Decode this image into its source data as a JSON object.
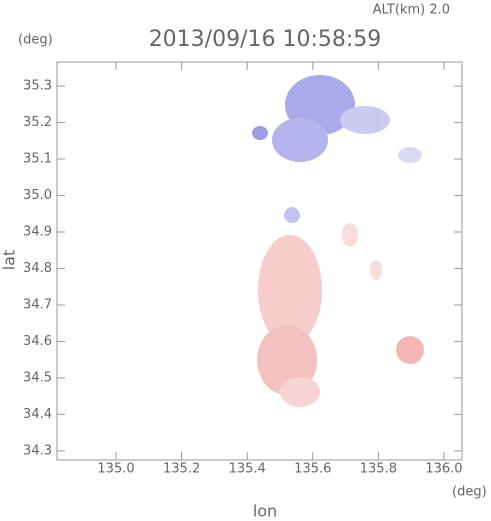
{
  "chart_data": {
    "type": "map",
    "title": "2013/09/16 10:58:59",
    "subtitle": "ALT(km) 2.0",
    "y_unit": "(deg)",
    "x_unit": "(deg)",
    "xlabel": "lon",
    "ylabel": "lat",
    "xlim": [
      134.82,
      136.055
    ],
    "ylim": [
      34.275,
      35.366
    ],
    "xticks": [
      {
        "value": 135,
        "label": "135.0"
      },
      135.2,
      135.4,
      135.6,
      135.8,
      {
        "value": 136,
        "label": "136.0"
      }
    ],
    "yticks": [
      34.3,
      34.4,
      34.5,
      34.6,
      34.7,
      34.8,
      34.9,
      {
        "value": 35,
        "label": "35.0"
      },
      35.1,
      35.2,
      35.3
    ]
  }
}
